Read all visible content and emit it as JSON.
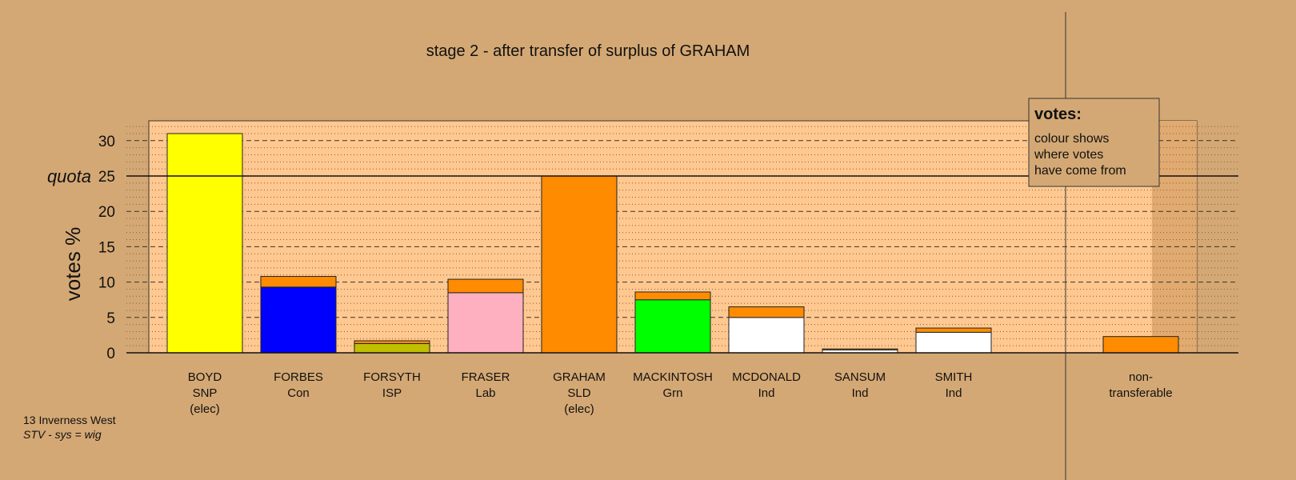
{
  "chart_data": {
    "type": "bar",
    "title": "stage 2 - after transfer of surplus of GRAHAM",
    "ylabel": "votes %",
    "ylim": [
      0,
      33
    ],
    "yticks": [
      0,
      5,
      10,
      15,
      20,
      25,
      30
    ],
    "quota": 25,
    "quota_label": "quota",
    "grid": true,
    "colors": {
      "SNP": "#ffff00",
      "Con": "#0000ff",
      "ISP": "#c0c000",
      "Lab": "#ffb0c0",
      "SLD": "#ff8c00",
      "Grn": "#00ff00",
      "Ind": "#ffffff"
    },
    "candidates": [
      {
        "name": "BOYD",
        "party": "SNP",
        "note": "(elec)",
        "segments": [
          {
            "from": "SNP",
            "value": 31.0
          }
        ]
      },
      {
        "name": "FORBES",
        "party": "Con",
        "note": "",
        "segments": [
          {
            "from": "Con",
            "value": 9.3
          },
          {
            "from": "SLD",
            "value": 1.5
          }
        ]
      },
      {
        "name": "FORSYTH",
        "party": "ISP",
        "note": "",
        "segments": [
          {
            "from": "ISP",
            "value": 1.3
          },
          {
            "from": "SLD",
            "value": 0.4
          }
        ]
      },
      {
        "name": "FRASER",
        "party": "Lab",
        "note": "",
        "segments": [
          {
            "from": "Lab",
            "value": 8.5
          },
          {
            "from": "SLD",
            "value": 1.9
          }
        ]
      },
      {
        "name": "GRAHAM",
        "party": "SLD",
        "note": "(elec)",
        "segments": [
          {
            "from": "SLD",
            "value": 25.0
          }
        ]
      },
      {
        "name": "MACKINTOSH",
        "party": "Grn",
        "note": "",
        "segments": [
          {
            "from": "Grn",
            "value": 7.5
          },
          {
            "from": "SLD",
            "value": 1.1
          }
        ]
      },
      {
        "name": "MCDONALD",
        "party": "Ind",
        "note": "",
        "segments": [
          {
            "from": "Ind",
            "value": 5.0
          },
          {
            "from": "SLD",
            "value": 1.5
          }
        ]
      },
      {
        "name": "SANSUM",
        "party": "Ind",
        "note": "",
        "segments": [
          {
            "from": "Ind",
            "value": 0.4
          },
          {
            "from": "SLD",
            "value": 0.15
          }
        ]
      },
      {
        "name": "SMITH",
        "party": "Ind",
        "note": "",
        "segments": [
          {
            "from": "Ind",
            "value": 2.9
          },
          {
            "from": "SLD",
            "value": 0.6
          }
        ]
      }
    ],
    "nontransferable": {
      "label_line1": "non-",
      "label_line2": "transferable",
      "value": 2.3,
      "from": "SLD"
    },
    "legend": {
      "title": "votes:",
      "lines": [
        "colour shows",
        "where votes",
        "have come from"
      ]
    },
    "footer": {
      "ward": "13 Inverness West",
      "system": "STV - sys = wig"
    }
  }
}
